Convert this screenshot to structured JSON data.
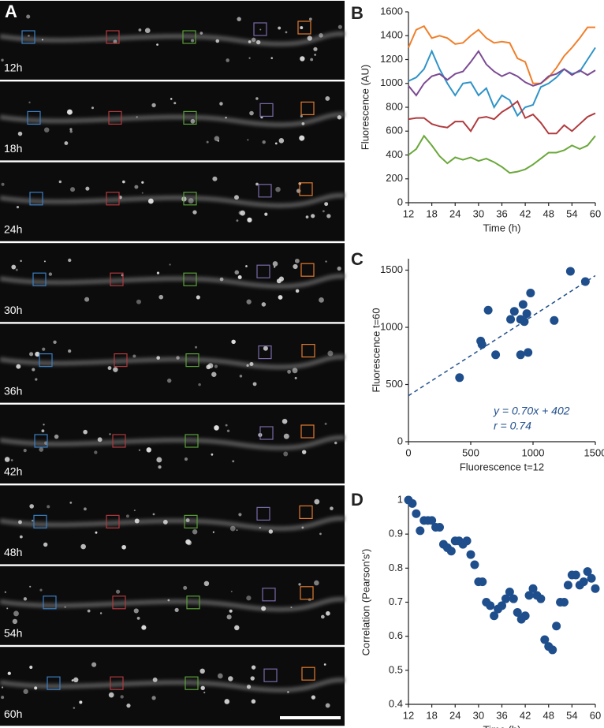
{
  "image_panel": {
    "label": "A",
    "timepoints": [
      "12h",
      "18h",
      "24h",
      "30h",
      "36h",
      "42h",
      "48h",
      "54h",
      "60h"
    ]
  },
  "chart_data": [
    {
      "type": "line",
      "panel_label": "B",
      "x_label": "Time (h)",
      "y_label": "Fluorescence (AU)",
      "x": [
        12,
        14,
        16,
        18,
        20,
        22,
        24,
        26,
        28,
        30,
        32,
        34,
        36,
        38,
        40,
        42,
        44,
        46,
        48,
        50,
        52,
        54,
        56,
        58,
        60
      ],
      "xlim": [
        12,
        60
      ],
      "xticks": [
        12,
        18,
        24,
        30,
        36,
        42,
        48,
        54,
        60
      ],
      "ylim": [
        0,
        1600
      ],
      "yticks": [
        0,
        200,
        400,
        600,
        800,
        1000,
        1200,
        1400,
        1600
      ],
      "series": [
        {
          "color": "#f07f2a",
          "values": [
            1300,
            1450,
            1480,
            1380,
            1400,
            1380,
            1330,
            1340,
            1400,
            1450,
            1380,
            1340,
            1350,
            1340,
            1210,
            1180,
            1000,
            1000,
            1050,
            1130,
            1230,
            1300,
            1380,
            1470,
            1470
          ]
        },
        {
          "color": "#2e93c8",
          "values": [
            1020,
            1050,
            1120,
            1270,
            1120,
            1000,
            900,
            1000,
            1010,
            900,
            960,
            800,
            900,
            860,
            730,
            800,
            820,
            970,
            1000,
            1050,
            1120,
            1080,
            1100,
            1200,
            1300
          ]
        },
        {
          "color": "#7b4a93",
          "values": [
            980,
            900,
            1000,
            1060,
            1080,
            1030,
            1080,
            1100,
            1180,
            1270,
            1160,
            1100,
            1060,
            1090,
            1060,
            1010,
            980,
            1000,
            1060,
            1080,
            1120,
            1070,
            1110,
            1070,
            1110
          ]
        },
        {
          "color": "#b03a3e",
          "values": [
            700,
            710,
            710,
            660,
            640,
            630,
            680,
            680,
            600,
            710,
            720,
            700,
            760,
            800,
            850,
            710,
            740,
            670,
            580,
            580,
            650,
            600,
            660,
            720,
            750
          ]
        },
        {
          "color": "#6aa83a",
          "values": [
            400,
            450,
            560,
            480,
            390,
            330,
            380,
            360,
            380,
            350,
            370,
            340,
            300,
            250,
            260,
            280,
            320,
            370,
            420,
            420,
            440,
            480,
            450,
            480,
            560
          ]
        }
      ]
    },
    {
      "type": "scatter",
      "panel_label": "C",
      "x_label": "Fluorescence t=12",
      "y_label": "Fluorescence t=60",
      "color": "#1f4e8c",
      "x": [
        410,
        580,
        590,
        640,
        700,
        820,
        850,
        900,
        900,
        920,
        930,
        950,
        960,
        980,
        1170,
        1300,
        1420
      ],
      "values": [
        560,
        880,
        850,
        1150,
        760,
        1070,
        1140,
        760,
        1070,
        1200,
        1050,
        1120,
        780,
        1300,
        1060,
        1490,
        1400
      ],
      "xlim": [
        0,
        1500
      ],
      "xticks": [
        0,
        500,
        1000,
        1500
      ],
      "ylim": [
        0,
        1600
      ],
      "yticks": [
        0,
        500,
        1000,
        1500
      ],
      "trendline": {
        "slope": 0.7,
        "intercept": 402
      },
      "annotations": [
        "y = 0.70x + 402",
        "r = 0.74"
      ]
    },
    {
      "type": "scatter",
      "panel_label": "D",
      "x_label": "Time (h)",
      "y_label": "Correlation (Pearson's')",
      "color": "#1f4e8c",
      "x": [
        12,
        13,
        14,
        15,
        16,
        17,
        18,
        19,
        20,
        21,
        22,
        23,
        24,
        25,
        26,
        27,
        28,
        29,
        30,
        31,
        32,
        33,
        34,
        35,
        36,
        37,
        38,
        39,
        40,
        41,
        42,
        43,
        44,
        45,
        46,
        47,
        48,
        49,
        50,
        51,
        52,
        53,
        54,
        55,
        56,
        57,
        58,
        59,
        60
      ],
      "values": [
        1.0,
        0.99,
        0.96,
        0.91,
        0.94,
        0.94,
        0.94,
        0.92,
        0.92,
        0.87,
        0.86,
        0.85,
        0.88,
        0.88,
        0.87,
        0.88,
        0.84,
        0.81,
        0.76,
        0.76,
        0.7,
        0.69,
        0.66,
        0.68,
        0.69,
        0.71,
        0.73,
        0.71,
        0.67,
        0.65,
        0.66,
        0.72,
        0.74,
        0.72,
        0.71,
        0.59,
        0.57,
        0.56,
        0.63,
        0.7,
        0.7,
        0.75,
        0.78,
        0.78,
        0.75,
        0.76,
        0.79,
        0.77,
        0.74
      ],
      "xlim": [
        12,
        60
      ],
      "xticks": [
        12,
        18,
        24,
        30,
        36,
        42,
        48,
        54,
        60
      ],
      "ylim": [
        0.4,
        1
      ],
      "yticks": [
        0.4,
        0.5,
        0.6,
        0.7,
        0.8,
        0.9,
        1
      ]
    }
  ]
}
